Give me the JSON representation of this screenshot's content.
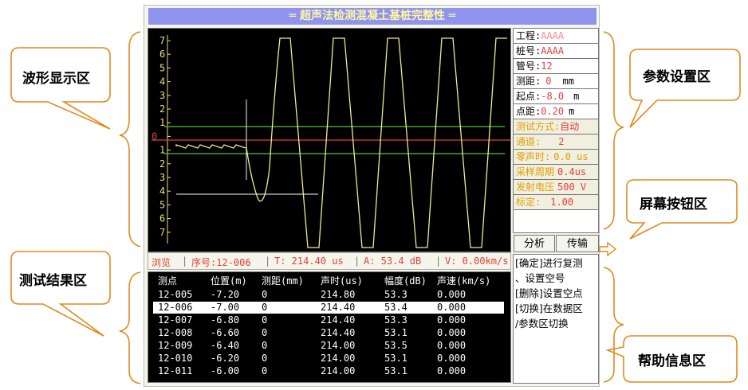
{
  "title": "═ 超声法检测混凝土基桩完整性 ═",
  "callouts": {
    "waveform": "波形显示区",
    "params": "参数设置区",
    "buttons": "屏幕按钮区",
    "results": "测试结果区",
    "help": "帮助信息区"
  },
  "waveform": {
    "y_ticks": [
      "7",
      "6",
      "5",
      "4",
      "3",
      "2",
      "1",
      "0",
      "1",
      "2",
      "3",
      "4",
      "5",
      "6",
      "7"
    ]
  },
  "status": {
    "mode": "浏览",
    "seq": "序号:12-006",
    "t": "T: 214.40 us",
    "a": "A: 53.4  dB",
    "v": "V: 0.00km/s"
  },
  "results": {
    "headers": [
      "测点",
      "位置(m)",
      "测距(mm)",
      "声时(us)",
      "幅度(dB)",
      "声速(km/s)"
    ],
    "rows": [
      [
        "12-005",
        "-7.20",
        "0",
        "214.80",
        "53.3",
        "0.000"
      ],
      [
        "12-006",
        "-7.00",
        "0",
        "214.40",
        "53.4",
        "0.000"
      ],
      [
        "12-007",
        "-6.80",
        "0",
        "214.40",
        "53.3",
        "0.000"
      ],
      [
        "12-008",
        "-6.60",
        "0",
        "214.40",
        "53.1",
        "0.000"
      ],
      [
        "12-009",
        "-6.40",
        "0",
        "214.00",
        "53.5",
        "0.000"
      ],
      [
        "12-010",
        "-6.20",
        "0",
        "214.00",
        "53.1",
        "0.000"
      ],
      [
        "12-011",
        "-6.00",
        "0",
        "214.00",
        "53.1",
        "0.000"
      ]
    ],
    "selected_index": 1
  },
  "params": {
    "project_label": "工程:",
    "project_value": "AAAA",
    "pile_label": "桩号:",
    "pile_value": "AAAA",
    "tube_label": "管号:",
    "tube_value": "12",
    "distance_label": "测距:",
    "distance_value": "0",
    "distance_unit": "mm",
    "start_label": "起点:",
    "start_value": "-8.0",
    "start_unit": "m",
    "spacing_label": "点距:",
    "spacing_value": "0.20",
    "spacing_unit": "m",
    "mode_label": "测试方式:",
    "mode_value": "自动",
    "channel_label": "通道:",
    "channel_value": "2",
    "zero_label": "零声时:",
    "zero_value": "0.0 us",
    "sample_label": "采样周期",
    "sample_value": "0.4us",
    "voltage_label": "发射电压",
    "voltage_value": "500 V",
    "calib_label": "标定:",
    "calib_value": "1.00"
  },
  "buttons": {
    "analyze": "分析",
    "transfer": "传输"
  },
  "help": {
    "lines": [
      "[确定]进行复测",
      "、设置空号",
      "[删除]设置空点",
      "[切换]在数据区",
      "/参数区切换"
    ]
  },
  "colors": {
    "title_bg": "#8f94ef",
    "wave": "#f0ea8c",
    "zero_line": "#e0413a",
    "threshold_line": "#55c23a",
    "callout_border": "#e08a1e"
  }
}
